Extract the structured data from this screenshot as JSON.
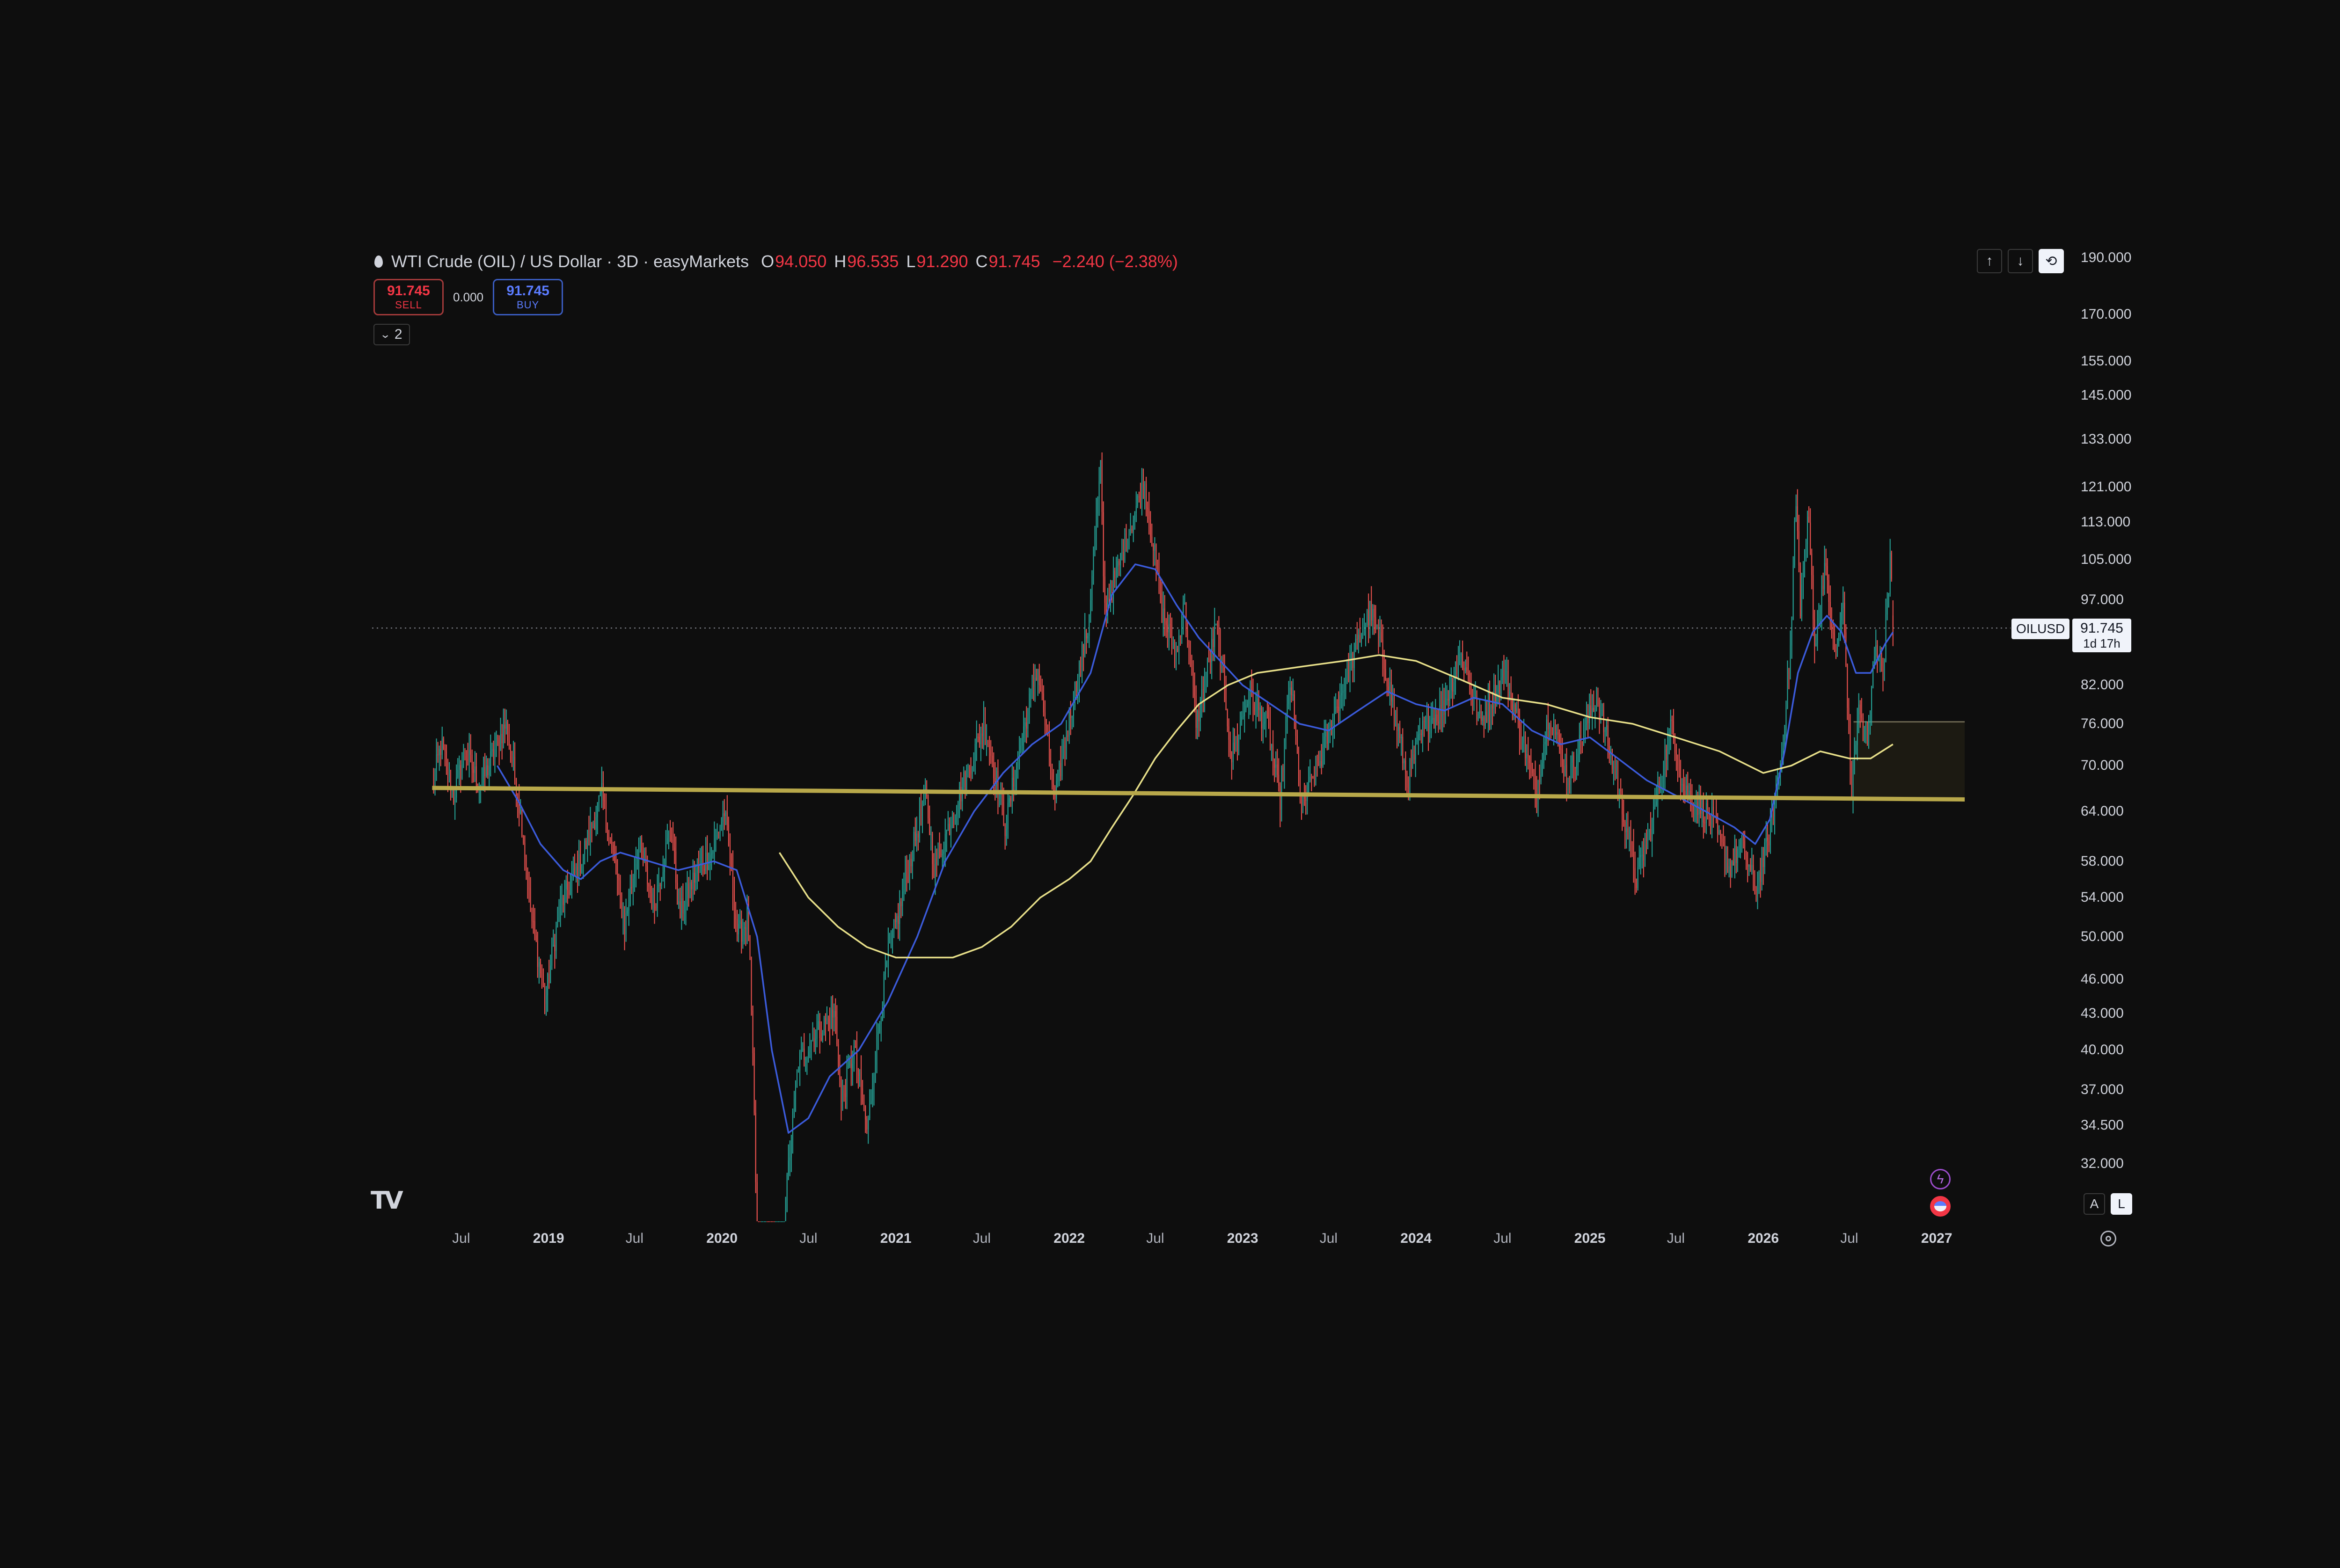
{
  "legend": {
    "title": "WTI Crude (OIL) / US Dollar · 3D · easyMarkets",
    "o_label": "O",
    "o_value": "94.050",
    "h_label": "H",
    "h_value": "96.535",
    "l_label": "L",
    "l_value": "91.290",
    "c_label": "C",
    "c_value": "91.745",
    "change": "−2.240 (−2.38%)"
  },
  "trade": {
    "sell_price": "91.745",
    "sell_label": "SELL",
    "spread": "0.000",
    "buy_price": "91.745",
    "buy_label": "BUY"
  },
  "indicators_count": "2",
  "current_price": {
    "symbol": "OILUSD",
    "price": "91.745",
    "timer": "1d 17h"
  },
  "scale_buttons": {
    "auto": "A",
    "log": "L"
  },
  "icons": [
    "oil-drop-icon",
    "chevron-down-icon",
    "arrow-up-icon",
    "arrow-down-icon",
    "sync-icon",
    "tradingview-logo-icon",
    "flash-icon",
    "us-flag-icon",
    "gear-icon"
  ],
  "colors": {
    "background": "#0e0e0e",
    "up": "#26a69a",
    "down": "#ef5350",
    "ma_fast": "#3b5bdb",
    "ma_slow": "#e8e08a",
    "support": "#b8a84a",
    "zone": "#1c1a12"
  },
  "chart_data": {
    "type": "candlestick",
    "symbol": "OILUSD",
    "interval": "3D",
    "scale": "log",
    "ylim": [
      28,
      200
    ],
    "xlim": [
      "2018-04",
      "2027-05"
    ],
    "y_ticks": [
      "190.000",
      "170.000",
      "155.000",
      "145.000",
      "133.000",
      "121.000",
      "113.000",
      "105.000",
      "97.000",
      "82.000",
      "76.000",
      "70.000",
      "64.000",
      "58.000",
      "54.000",
      "50.000",
      "46.000",
      "43.000",
      "40.000",
      "37.000",
      "34.500",
      "32.000"
    ],
    "x_ticks": [
      {
        "label": "Jul",
        "date": "2018-07",
        "year": false
      },
      {
        "label": "2019",
        "date": "2019-01",
        "year": true
      },
      {
        "label": "Jul",
        "date": "2019-07",
        "year": false
      },
      {
        "label": "2020",
        "date": "2020-01",
        "year": true
      },
      {
        "label": "Jul",
        "date": "2020-07",
        "year": false
      },
      {
        "label": "2021",
        "date": "2021-01",
        "year": true
      },
      {
        "label": "Jul",
        "date": "2021-07",
        "year": false
      },
      {
        "label": "2022",
        "date": "2022-01",
        "year": true
      },
      {
        "label": "Jul",
        "date": "2022-07",
        "year": false
      },
      {
        "label": "2023",
        "date": "2023-01",
        "year": true
      },
      {
        "label": "Jul",
        "date": "2023-07",
        "year": false
      },
      {
        "label": "2024",
        "date": "2024-01",
        "year": true
      },
      {
        "label": "Jul",
        "date": "2024-07",
        "year": false
      },
      {
        "label": "2025",
        "date": "2025-01",
        "year": true
      },
      {
        "label": "Jul",
        "date": "2025-07",
        "year": false
      },
      {
        "label": "2026",
        "date": "2026-01",
        "year": true
      },
      {
        "label": "Jul",
        "date": "2026-07",
        "year": false
      },
      {
        "label": "2027",
        "date": "2027-01",
        "year": true
      }
    ],
    "price_path": [
      [
        "2018-05-01",
        67
      ],
      [
        "2018-05-20",
        73
      ],
      [
        "2018-06-15",
        66
      ],
      [
        "2018-07-10",
        72
      ],
      [
        "2018-08-10",
        67
      ],
      [
        "2018-10-03",
        76
      ],
      [
        "2018-11-05",
        63
      ],
      [
        "2018-11-25",
        52
      ],
      [
        "2018-12-25",
        44
      ],
      [
        "2019-01-25",
        53
      ],
      [
        "2019-03-10",
        58
      ],
      [
        "2019-04-23",
        66
      ],
      [
        "2019-06-10",
        51
      ],
      [
        "2019-07-10",
        60
      ],
      [
        "2019-08-10",
        53
      ],
      [
        "2019-09-16",
        62
      ],
      [
        "2019-10-03",
        52
      ],
      [
        "2019-11-10",
        57
      ],
      [
        "2019-12-10",
        59
      ],
      [
        "2020-01-06",
        64
      ],
      [
        "2020-02-03",
        50
      ],
      [
        "2020-02-25",
        52
      ],
      [
        "2020-03-18",
        23
      ],
      [
        "2020-04-05",
        26
      ],
      [
        "2020-04-21",
        18
      ],
      [
        "2020-05-15",
        30
      ],
      [
        "2020-06-10",
        39
      ],
      [
        "2020-07-10",
        41
      ],
      [
        "2020-08-26",
        43
      ],
      [
        "2020-09-08",
        36
      ],
      [
        "2020-10-05",
        40
      ],
      [
        "2020-11-02",
        34
      ],
      [
        "2020-12-15",
        48
      ],
      [
        "2021-01-10",
        53
      ],
      [
        "2021-03-05",
        66
      ],
      [
        "2021-03-23",
        57
      ],
      [
        "2021-05-15",
        66
      ],
      [
        "2021-07-06",
        76
      ],
      [
        "2021-08-20",
        62
      ],
      [
        "2021-10-26",
        85
      ],
      [
        "2021-12-01",
        65
      ],
      [
        "2022-01-10",
        80
      ],
      [
        "2022-02-10",
        92
      ],
      [
        "2022-03-08",
        125
      ],
      [
        "2022-03-16",
        95
      ],
      [
        "2022-04-10",
        102
      ],
      [
        "2022-06-08",
        122
      ],
      [
        "2022-07-14",
        95
      ],
      [
        "2022-08-16",
        87
      ],
      [
        "2022-08-29",
        97
      ],
      [
        "2022-09-26",
        76
      ],
      [
        "2022-11-07",
        92
      ],
      [
        "2022-12-09",
        71
      ],
      [
        "2023-01-15",
        81
      ],
      [
        "2023-02-25",
        75
      ],
      [
        "2023-03-20",
        65
      ],
      [
        "2023-04-12",
        83
      ],
      [
        "2023-05-04",
        64
      ],
      [
        "2023-06-15",
        71
      ],
      [
        "2023-08-10",
        84
      ],
      [
        "2023-09-27",
        95
      ],
      [
        "2023-10-20",
        88
      ],
      [
        "2023-12-13",
        68
      ],
      [
        "2024-01-20",
        76
      ],
      [
        "2024-02-25",
        78
      ],
      [
        "2024-04-05",
        87
      ],
      [
        "2024-05-15",
        76
      ],
      [
        "2024-07-05",
        84
      ],
      [
        "2024-09-10",
        66
      ],
      [
        "2024-10-07",
        78
      ],
      [
        "2024-11-15",
        68
      ],
      [
        "2025-01-15",
        80
      ],
      [
        "2025-03-05",
        66
      ],
      [
        "2025-04-09",
        56
      ],
      [
        "2025-05-10",
        62
      ],
      [
        "2025-06-23",
        76
      ],
      [
        "2025-07-15",
        67
      ],
      [
        "2025-09-15",
        63
      ],
      [
        "2025-10-20",
        57
      ],
      [
        "2025-11-15",
        60
      ],
      [
        "2025-12-16",
        55
      ],
      [
        "2026-01-10",
        60
      ],
      [
        "2026-02-10",
        72
      ],
      [
        "2026-03-01",
        90
      ],
      [
        "2026-03-10",
        119
      ],
      [
        "2026-03-20",
        96
      ],
      [
        "2026-04-06",
        114
      ],
      [
        "2026-04-20",
        88
      ],
      [
        "2026-05-10",
        104
      ],
      [
        "2026-06-01",
        86
      ],
      [
        "2026-06-18",
        96
      ],
      [
        "2026-07-05",
        66
      ],
      [
        "2026-07-20",
        78
      ],
      [
        "2026-08-10",
        74
      ],
      [
        "2026-08-25",
        90
      ],
      [
        "2026-09-10",
        84
      ],
      [
        "2026-09-26",
        106
      ],
      [
        "2026-10-01",
        92
      ]
    ],
    "last_candle": {
      "o": 94.05,
      "h": 96.535,
      "l": 91.29,
      "c": 91.745
    },
    "ma_fast": [
      [
        "2018-09-15",
        70
      ],
      [
        "2018-11-01",
        65
      ],
      [
        "2018-12-15",
        60
      ],
      [
        "2019-02-01",
        57
      ],
      [
        "2019-03-10",
        56
      ],
      [
        "2019-04-20",
        58
      ],
      [
        "2019-06-01",
        59
      ],
      [
        "2019-08-01",
        58
      ],
      [
        "2019-10-01",
        57
      ],
      [
        "2019-12-15",
        58
      ],
      [
        "2020-02-01",
        57
      ],
      [
        "2020-03-15",
        50
      ],
      [
        "2020-04-15",
        40
      ],
      [
        "2020-05-20",
        34
      ],
      [
        "2020-07-01",
        35
      ],
      [
        "2020-08-15",
        38
      ],
      [
        "2020-10-15",
        40
      ],
      [
        "2020-12-15",
        44
      ],
      [
        "2021-02-15",
        50
      ],
      [
        "2021-04-15",
        58
      ],
      [
        "2021-06-15",
        64
      ],
      [
        "2021-08-15",
        69
      ],
      [
        "2021-10-15",
        73
      ],
      [
        "2021-12-15",
        76
      ],
      [
        "2022-02-15",
        84
      ],
      [
        "2022-04-01",
        98
      ],
      [
        "2022-05-20",
        104
      ],
      [
        "2022-07-01",
        103
      ],
      [
        "2022-08-15",
        96
      ],
      [
        "2022-10-01",
        90
      ],
      [
        "2022-11-15",
        86
      ],
      [
        "2023-01-01",
        82
      ],
      [
        "2023-03-01",
        79
      ],
      [
        "2023-05-01",
        76
      ],
      [
        "2023-07-01",
        75
      ],
      [
        "2023-09-01",
        78
      ],
      [
        "2023-11-01",
        81
      ],
      [
        "2024-01-01",
        79
      ],
      [
        "2024-03-01",
        78
      ],
      [
        "2024-05-01",
        80
      ],
      [
        "2024-07-01",
        79
      ],
      [
        "2024-09-01",
        75
      ],
      [
        "2024-11-01",
        73
      ],
      [
        "2025-01-01",
        74
      ],
      [
        "2025-03-01",
        71
      ],
      [
        "2025-05-01",
        68
      ],
      [
        "2025-07-01",
        66
      ],
      [
        "2025-09-01",
        64
      ],
      [
        "2025-11-01",
        62
      ],
      [
        "2025-12-15",
        60
      ],
      [
        "2026-01-15",
        63
      ],
      [
        "2026-02-15",
        72
      ],
      [
        "2026-03-15",
        84
      ],
      [
        "2026-04-15",
        91
      ],
      [
        "2026-05-15",
        94
      ],
      [
        "2026-06-15",
        91
      ],
      [
        "2026-07-15",
        84
      ],
      [
        "2026-08-15",
        84
      ],
      [
        "2026-09-15",
        89
      ],
      [
        "2026-10-01",
        91
      ]
    ],
    "ma_slow": [
      [
        "2020-05-01",
        59
      ],
      [
        "2020-07-01",
        54
      ],
      [
        "2020-09-01",
        51
      ],
      [
        "2020-11-01",
        49
      ],
      [
        "2021-01-01",
        48
      ],
      [
        "2021-03-01",
        48
      ],
      [
        "2021-05-01",
        48
      ],
      [
        "2021-07-01",
        49
      ],
      [
        "2021-09-01",
        51
      ],
      [
        "2021-11-01",
        54
      ],
      [
        "2022-01-01",
        56
      ],
      [
        "2022-02-15",
        58
      ],
      [
        "2022-04-01",
        62
      ],
      [
        "2022-05-15",
        66
      ],
      [
        "2022-07-01",
        71
      ],
      [
        "2022-08-15",
        75
      ],
      [
        "2022-10-01",
        79
      ],
      [
        "2022-12-01",
        82
      ],
      [
        "2023-02-01",
        84
      ],
      [
        "2023-05-01",
        85
      ],
      [
        "2023-08-01",
        86
      ],
      [
        "2023-10-15",
        87
      ],
      [
        "2024-01-01",
        86
      ],
      [
        "2024-04-01",
        83
      ],
      [
        "2024-07-01",
        80
      ],
      [
        "2024-10-01",
        79
      ],
      [
        "2025-01-01",
        77
      ],
      [
        "2025-04-01",
        76
      ],
      [
        "2025-07-01",
        74
      ],
      [
        "2025-10-01",
        72
      ],
      [
        "2026-01-01",
        69
      ],
      [
        "2026-03-01",
        70
      ],
      [
        "2026-05-01",
        72
      ],
      [
        "2026-07-01",
        71
      ],
      [
        "2026-08-15",
        71
      ],
      [
        "2026-10-01",
        73
      ]
    ],
    "support_line": [
      [
        "2018-05-01",
        67.0
      ],
      [
        "2027-03-01",
        65.5
      ]
    ],
    "zone": {
      "start": "2026-07-10",
      "end": "2027-03-01",
      "top": 76.3,
      "bottom": 65.5
    },
    "current_price_line": 91.745
  }
}
